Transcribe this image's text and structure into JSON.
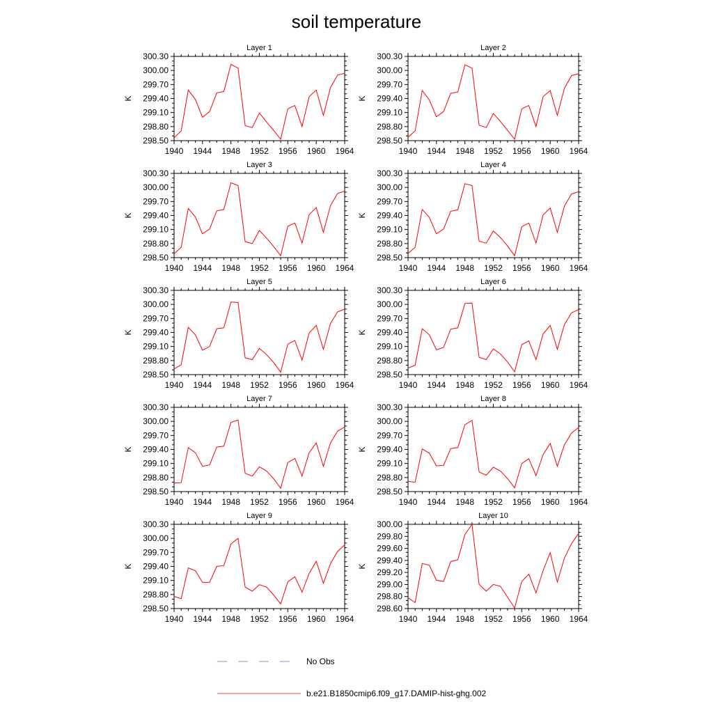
{
  "title": "soil temperature",
  "colors": {
    "series": "#ff0000",
    "obs": "#6a6ad0",
    "axis": "#000000"
  },
  "legend": [
    {
      "label": "No Obs",
      "style": "dashed",
      "color": "#6a6ad0"
    },
    {
      "label": "b.e21.B1850cmip6.f09_g17.DAMIP-hist-ghg.002",
      "style": "solid",
      "color": "#ff0000"
    }
  ],
  "chart_data": [
    {
      "type": "line",
      "title": "Layer 1",
      "ylabel": "K",
      "xlim": [
        1940,
        1964
      ],
      "ylim": [
        298.5,
        300.3
      ],
      "xticks": [
        "1940",
        "1944",
        "1948",
        "1952",
        "1956",
        "1960",
        "1964"
      ],
      "yticks": [
        "298.50",
        "298.80",
        "299.10",
        "299.40",
        "299.70",
        "300.00",
        "300.30"
      ],
      "series": [
        {
          "x": [
            1940,
            1941,
            1942,
            1943,
            1944,
            1945,
            1946,
            1947,
            1948,
            1949,
            1950,
            1951,
            1952,
            1953,
            1954,
            1955,
            1956,
            1957,
            1958,
            1959,
            1960,
            1961,
            1962,
            1963,
            1964
          ],
          "values": [
            298.56,
            298.71,
            299.58,
            299.38,
            299.0,
            299.12,
            299.52,
            299.55,
            300.13,
            300.05,
            298.82,
            298.78,
            299.09,
            298.9,
            298.72,
            298.53,
            299.18,
            299.25,
            298.8,
            299.44,
            299.58,
            299.04,
            299.63,
            299.9,
            299.94
          ]
        }
      ]
    },
    {
      "type": "line",
      "title": "Layer 2",
      "ylabel": "K",
      "xlim": [
        1940,
        1964
      ],
      "ylim": [
        298.5,
        300.3
      ],
      "xticks": [
        "1940",
        "1944",
        "1948",
        "1952",
        "1956",
        "1960",
        "1964"
      ],
      "yticks": [
        "298.50",
        "298.80",
        "299.10",
        "299.40",
        "299.70",
        "300.00",
        "300.30"
      ],
      "series": [
        {
          "x": [
            1940,
            1941,
            1942,
            1943,
            1944,
            1945,
            1946,
            1947,
            1948,
            1949,
            1950,
            1951,
            1952,
            1953,
            1954,
            1955,
            1956,
            1957,
            1958,
            1959,
            1960,
            1961,
            1962,
            1963,
            1964
          ],
          "values": [
            298.57,
            298.71,
            299.57,
            299.37,
            299.01,
            299.12,
            299.51,
            299.54,
            300.12,
            300.05,
            298.83,
            298.78,
            299.08,
            298.91,
            298.72,
            298.53,
            299.18,
            299.25,
            298.8,
            299.44,
            299.57,
            299.04,
            299.62,
            299.89,
            299.93
          ]
        }
      ]
    },
    {
      "type": "line",
      "title": "Layer 3",
      "ylabel": "K",
      "xlim": [
        1940,
        1964
      ],
      "ylim": [
        298.5,
        300.3
      ],
      "xticks": [
        "1940",
        "1944",
        "1948",
        "1952",
        "1956",
        "1960",
        "1964"
      ],
      "yticks": [
        "298.50",
        "298.80",
        "299.10",
        "299.40",
        "299.70",
        "300.00",
        "300.30"
      ],
      "series": [
        {
          "x": [
            1940,
            1941,
            1942,
            1943,
            1944,
            1945,
            1946,
            1947,
            1948,
            1949,
            1950,
            1951,
            1952,
            1953,
            1954,
            1955,
            1956,
            1957,
            1958,
            1959,
            1960,
            1961,
            1962,
            1963,
            1964
          ],
          "values": [
            298.58,
            298.72,
            299.55,
            299.37,
            299.01,
            299.11,
            299.5,
            299.53,
            300.1,
            300.04,
            298.84,
            298.8,
            299.08,
            298.92,
            298.74,
            298.54,
            299.17,
            299.24,
            298.81,
            299.42,
            299.57,
            299.04,
            299.61,
            299.87,
            299.92
          ]
        }
      ]
    },
    {
      "type": "line",
      "title": "Layer 4",
      "ylabel": "K",
      "xlim": [
        1940,
        1964
      ],
      "ylim": [
        298.5,
        300.3
      ],
      "xticks": [
        "1940",
        "1944",
        "1948",
        "1952",
        "1956",
        "1960",
        "1964"
      ],
      "yticks": [
        "298.50",
        "298.80",
        "299.10",
        "299.40",
        "299.70",
        "300.00",
        "300.30"
      ],
      "series": [
        {
          "x": [
            1940,
            1941,
            1942,
            1943,
            1944,
            1945,
            1946,
            1947,
            1948,
            1949,
            1950,
            1951,
            1952,
            1953,
            1954,
            1955,
            1956,
            1957,
            1958,
            1959,
            1960,
            1961,
            1962,
            1963,
            1964
          ],
          "values": [
            298.59,
            298.72,
            299.53,
            299.36,
            299.01,
            299.11,
            299.49,
            299.52,
            300.08,
            300.04,
            298.85,
            298.81,
            299.07,
            298.93,
            298.75,
            298.54,
            299.16,
            299.24,
            298.81,
            299.41,
            299.56,
            299.04,
            299.6,
            299.86,
            299.91
          ]
        }
      ]
    },
    {
      "type": "line",
      "title": "Layer 5",
      "ylabel": "K",
      "xlim": [
        1940,
        1964
      ],
      "ylim": [
        298.5,
        300.3
      ],
      "xticks": [
        "1940",
        "1944",
        "1948",
        "1952",
        "1956",
        "1960",
        "1964"
      ],
      "yticks": [
        "298.50",
        "298.80",
        "299.10",
        "299.40",
        "299.70",
        "300.00",
        "300.30"
      ],
      "series": [
        {
          "x": [
            1940,
            1941,
            1942,
            1943,
            1944,
            1945,
            1946,
            1947,
            1948,
            1949,
            1950,
            1951,
            1952,
            1953,
            1954,
            1955,
            1956,
            1957,
            1958,
            1959,
            1960,
            1961,
            1962,
            1963,
            1964
          ],
          "values": [
            298.62,
            298.71,
            299.51,
            299.35,
            299.02,
            299.1,
            299.48,
            299.5,
            300.05,
            300.04,
            298.86,
            298.82,
            299.06,
            298.93,
            298.76,
            298.55,
            299.15,
            299.23,
            298.81,
            299.39,
            299.55,
            299.04,
            299.59,
            299.84,
            299.9
          ]
        }
      ]
    },
    {
      "type": "line",
      "title": "Layer 6",
      "ylabel": "K",
      "xlim": [
        1940,
        1964
      ],
      "ylim": [
        298.5,
        300.3
      ],
      "xticks": [
        "1940",
        "1944",
        "1948",
        "1952",
        "1956",
        "1960",
        "1964"
      ],
      "yticks": [
        "298.50",
        "298.80",
        "299.10",
        "299.40",
        "299.70",
        "300.00",
        "300.30"
      ],
      "series": [
        {
          "x": [
            1940,
            1941,
            1942,
            1943,
            1944,
            1945,
            1946,
            1947,
            1948,
            1949,
            1950,
            1951,
            1952,
            1953,
            1954,
            1955,
            1956,
            1957,
            1958,
            1959,
            1960,
            1961,
            1962,
            1963,
            1964
          ],
          "values": [
            298.64,
            298.7,
            299.48,
            299.35,
            299.03,
            299.08,
            299.47,
            299.5,
            300.02,
            300.03,
            298.87,
            298.82,
            299.05,
            298.94,
            298.77,
            298.56,
            299.14,
            299.22,
            298.82,
            299.37,
            299.55,
            299.04,
            299.57,
            299.82,
            299.89
          ]
        }
      ]
    },
    {
      "type": "line",
      "title": "Layer 7",
      "ylabel": "K",
      "xlim": [
        1940,
        1964
      ],
      "ylim": [
        298.5,
        300.3
      ],
      "xticks": [
        "1940",
        "1944",
        "1948",
        "1952",
        "1956",
        "1960",
        "1964"
      ],
      "yticks": [
        "298.50",
        "298.80",
        "299.10",
        "299.40",
        "299.70",
        "300.00",
        "300.30"
      ],
      "series": [
        {
          "x": [
            1940,
            1941,
            1942,
            1943,
            1944,
            1945,
            1946,
            1947,
            1948,
            1949,
            1950,
            1951,
            1952,
            1953,
            1954,
            1955,
            1956,
            1957,
            1958,
            1959,
            1960,
            1961,
            1962,
            1963,
            1964
          ],
          "values": [
            298.68,
            298.69,
            299.44,
            299.33,
            299.04,
            299.07,
            299.45,
            299.47,
            299.98,
            300.03,
            298.89,
            298.83,
            299.03,
            298.94,
            298.78,
            298.57,
            299.12,
            299.21,
            298.83,
            299.33,
            299.54,
            299.04,
            299.54,
            299.79,
            299.88
          ]
        }
      ]
    },
    {
      "type": "line",
      "title": "Layer 8",
      "ylabel": "K",
      "xlim": [
        1940,
        1964
      ],
      "ylim": [
        298.5,
        300.3
      ],
      "xticks": [
        "1940",
        "1944",
        "1948",
        "1952",
        "1956",
        "1960",
        "1964"
      ],
      "yticks": [
        "298.50",
        "298.80",
        "299.10",
        "299.40",
        "299.70",
        "300.00",
        "300.30"
      ],
      "series": [
        {
          "x": [
            1940,
            1941,
            1942,
            1943,
            1944,
            1945,
            1946,
            1947,
            1948,
            1949,
            1950,
            1951,
            1952,
            1953,
            1954,
            1955,
            1956,
            1957,
            1958,
            1959,
            1960,
            1961,
            1962,
            1963,
            1964
          ],
          "values": [
            298.72,
            298.7,
            299.41,
            299.32,
            299.05,
            299.06,
            299.42,
            299.44,
            299.93,
            300.02,
            298.92,
            298.85,
            299.02,
            298.94,
            298.78,
            298.58,
            299.1,
            299.2,
            298.84,
            299.29,
            299.53,
            299.04,
            299.5,
            299.75,
            299.87
          ]
        }
      ]
    },
    {
      "type": "line",
      "title": "Layer 9",
      "ylabel": "K",
      "xlim": [
        1940,
        1964
      ],
      "ylim": [
        298.5,
        300.3
      ],
      "xticks": [
        "1940",
        "1944",
        "1948",
        "1952",
        "1956",
        "1960",
        "1964"
      ],
      "yticks": [
        "298.50",
        "298.80",
        "299.10",
        "299.40",
        "299.70",
        "300.00",
        "300.30"
      ],
      "series": [
        {
          "x": [
            1940,
            1941,
            1942,
            1943,
            1944,
            1945,
            1946,
            1947,
            1948,
            1949,
            1950,
            1951,
            1952,
            1953,
            1954,
            1955,
            1956,
            1957,
            1958,
            1959,
            1960,
            1961,
            1962,
            1963,
            1964
          ],
          "values": [
            298.76,
            298.71,
            299.37,
            299.31,
            299.06,
            299.06,
            299.4,
            299.42,
            299.88,
            300.0,
            298.96,
            298.87,
            299.01,
            298.96,
            298.79,
            298.6,
            299.07,
            299.18,
            298.85,
            299.25,
            299.51,
            299.04,
            299.46,
            299.72,
            299.86
          ]
        }
      ]
    },
    {
      "type": "line",
      "title": "Layer 10",
      "ylabel": "K",
      "xlim": [
        1940,
        1964
      ],
      "ylim": [
        298.6,
        300.0
      ],
      "xticks": [
        "1940",
        "1944",
        "1948",
        "1952",
        "1956",
        "1960",
        "1964"
      ],
      "yticks": [
        "298.60",
        "298.80",
        "299.00",
        "299.20",
        "299.40",
        "299.60",
        "299.80",
        "300.00"
      ],
      "series": [
        {
          "x": [
            1940,
            1941,
            1942,
            1943,
            1944,
            1945,
            1946,
            1947,
            1948,
            1949,
            1950,
            1951,
            1952,
            1953,
            1954,
            1955,
            1956,
            1957,
            1958,
            1959,
            1960,
            1961,
            1962,
            1963,
            1964
          ],
          "values": [
            298.78,
            298.7,
            299.35,
            299.32,
            299.07,
            299.05,
            299.38,
            299.41,
            299.83,
            300.0,
            299.0,
            298.89,
            299.0,
            298.97,
            298.79,
            298.61,
            299.05,
            299.17,
            298.86,
            299.23,
            299.53,
            299.04,
            299.44,
            299.68,
            299.85
          ]
        }
      ]
    }
  ]
}
